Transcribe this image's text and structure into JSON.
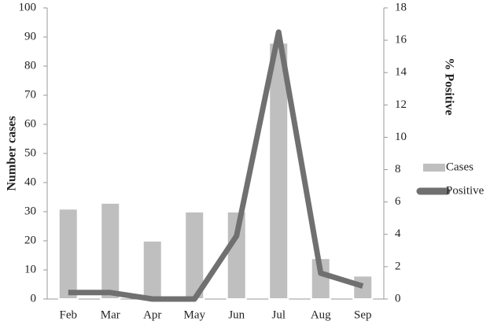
{
  "chart_data": {
    "type": "combo",
    "categories": [
      "Feb",
      "Mar",
      "Apr",
      "May",
      "Jun",
      "Jul",
      "Aug",
      "Sep"
    ],
    "series": [
      {
        "name": "Cases",
        "type": "bar",
        "color": "#bfbfbf",
        "values": [
          31,
          33,
          20,
          30,
          30,
          88,
          14,
          8
        ]
      },
      {
        "name": "Positive",
        "type": "line",
        "axis": "y2",
        "color": "#707070",
        "values": [
          0.4,
          0.4,
          0,
          0,
          3.9,
          16.5,
          1.6,
          0.8
        ]
      }
    ],
    "ylabel": "Number  cases",
    "y2label": "% Positive",
    "ylim": [
      0,
      100
    ],
    "yticks": [
      0,
      10,
      20,
      30,
      40,
      50,
      60,
      70,
      80,
      90,
      100
    ],
    "y2lim": [
      0,
      18
    ],
    "y2ticks": [
      0,
      2,
      4,
      6,
      8,
      10,
      12,
      14,
      16,
      18
    ],
    "legend": "right"
  }
}
